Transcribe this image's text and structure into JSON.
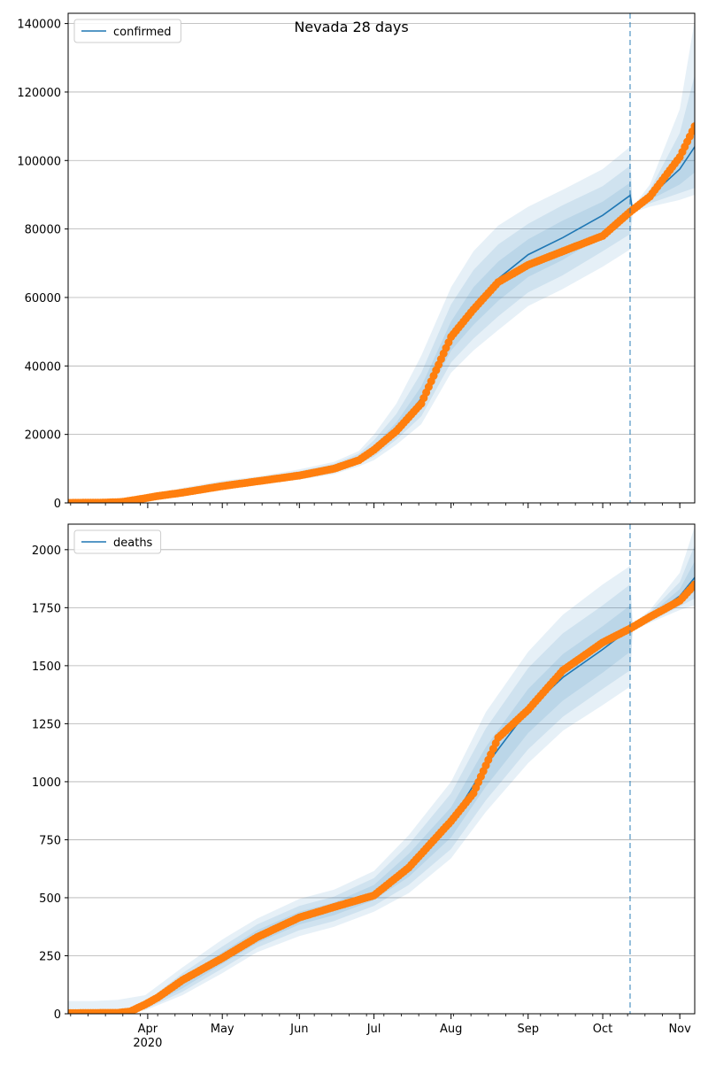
{
  "suptitle": "Nevada 28 days",
  "chart_data": [
    {
      "type": "line",
      "ylim": [
        0,
        143000
      ],
      "yticks": [
        0,
        20000,
        40000,
        60000,
        80000,
        100000,
        120000,
        140000
      ],
      "ytick_labels": [
        "0",
        "20000",
        "40000",
        "60000",
        "80000",
        "100000",
        "120000",
        "140000"
      ],
      "grid": "y",
      "legend": {
        "position": "top-left",
        "label": "confirmed"
      },
      "vline": {
        "date": "2020-10-12",
        "style": "dashed"
      },
      "model": {
        "name": "confirmed",
        "color": "#1f77b4",
        "dates": [
          "2020-02-29",
          "2020-03-10",
          "2020-03-20",
          "2020-03-31",
          "2020-04-15",
          "2020-05-01",
          "2020-05-15",
          "2020-06-01",
          "2020-06-15",
          "2020-06-25",
          "2020-07-01",
          "2020-07-10",
          "2020-07-20",
          "2020-08-01",
          "2020-08-10",
          "2020-08-20",
          "2020-09-01",
          "2020-09-15",
          "2020-10-01",
          "2020-10-12",
          "2020-10-13",
          "2020-10-20",
          "2020-11-01",
          "2020-11-07"
        ],
        "median": [
          0,
          0,
          0,
          1200,
          3200,
          5300,
          6500,
          8300,
          10200,
          12800,
          15500,
          21500,
          30500,
          48500,
          57500,
          65500,
          72500,
          77500,
          84000,
          89800,
          85500,
          89500,
          97500,
          104000
        ],
        "band_50_lo": [
          0,
          0,
          0,
          1000,
          2800,
          4900,
          6100,
          7800,
          9600,
          12100,
          14500,
          20000,
          27800,
          44500,
          52000,
          59000,
          66000,
          71000,
          78000,
          83500,
          85300,
          88500,
          93000,
          96500
        ],
        "band_50_hi": [
          0,
          0,
          0,
          1400,
          3600,
          5700,
          6900,
          8800,
          10800,
          13600,
          16800,
          23500,
          34000,
          53000,
          63000,
          70500,
          77000,
          82500,
          88000,
          93500,
          85800,
          90500,
          102000,
          112000
        ],
        "band_80_lo": [
          0,
          0,
          0,
          800,
          2400,
          4500,
          5700,
          7300,
          9000,
          11400,
          13500,
          18500,
          25300,
          41000,
          48000,
          54500,
          61500,
          66500,
          73500,
          78500,
          85100,
          87500,
          90500,
          92000
        ],
        "band_80_hi": [
          0,
          0,
          0,
          1600,
          4000,
          6100,
          7300,
          9300,
          11400,
          14400,
          18300,
          26000,
          38000,
          58000,
          68000,
          75500,
          81500,
          87000,
          92500,
          98500,
          86000,
          91500,
          108000,
          125000
        ],
        "band_95_lo": [
          0,
          0,
          0,
          600,
          2000,
          4100,
          5300,
          6800,
          8400,
          10700,
          12500,
          17000,
          23000,
          38000,
          44500,
          50500,
          57500,
          62500,
          69000,
          74000,
          84800,
          86500,
          88500,
          90000
        ],
        "band_95_hi": [
          0,
          0,
          0,
          1800,
          4400,
          6500,
          7700,
          9800,
          12000,
          15200,
          20000,
          29000,
          43000,
          63000,
          73500,
          81000,
          86500,
          91500,
          97500,
          104000,
          86300,
          93000,
          115000,
          141000
        ]
      },
      "observed": {
        "name": "observed",
        "color": "#ff7f0e",
        "dates": [
          "2020-02-29",
          "2020-03-15",
          "2020-03-22",
          "2020-03-28",
          "2020-04-05",
          "2020-04-15",
          "2020-05-01",
          "2020-05-15",
          "2020-06-01",
          "2020-06-15",
          "2020-06-25",
          "2020-07-01",
          "2020-07-10",
          "2020-07-20",
          "2020-08-01",
          "2020-08-10",
          "2020-08-20",
          "2020-09-01",
          "2020-09-15",
          "2020-10-01",
          "2020-10-12",
          "2020-10-20",
          "2020-11-01",
          "2020-11-07"
        ],
        "values": [
          0,
          100,
          300,
          1000,
          2000,
          3000,
          4900,
          6300,
          8000,
          10000,
          12500,
          15500,
          21000,
          29000,
          48500,
          56500,
          64500,
          69500,
          73500,
          78000,
          85000,
          89500,
          101000,
          110000
        ]
      }
    },
    {
      "type": "line",
      "ylim": [
        0,
        2110
      ],
      "yticks": [
        0,
        250,
        500,
        750,
        1000,
        1250,
        1500,
        1750,
        2000
      ],
      "ytick_labels": [
        "0",
        "250",
        "500",
        "750",
        "1000",
        "1250",
        "1500",
        "1750",
        "2000"
      ],
      "grid": "y",
      "legend": {
        "position": "top-left",
        "label": "deaths"
      },
      "vline": {
        "date": "2020-10-12",
        "style": "dashed"
      },
      "xticks": [
        {
          "date": "2020-04-01",
          "label": "Apr"
        },
        {
          "date": "2020-05-01",
          "label": "May"
        },
        {
          "date": "2020-06-01",
          "label": "Jun"
        },
        {
          "date": "2020-07-01",
          "label": "Jul"
        },
        {
          "date": "2020-08-01",
          "label": "Aug"
        },
        {
          "date": "2020-09-01",
          "label": "Sep"
        },
        {
          "date": "2020-10-01",
          "label": "Oct"
        },
        {
          "date": "2020-11-01",
          "label": "Nov"
        }
      ],
      "xtick_year": "2020",
      "model": {
        "name": "deaths",
        "color": "#1f77b4",
        "dates": [
          "2020-02-29",
          "2020-03-10",
          "2020-03-20",
          "2020-03-31",
          "2020-04-15",
          "2020-05-01",
          "2020-05-15",
          "2020-06-01",
          "2020-06-15",
          "2020-07-01",
          "2020-07-15",
          "2020-08-01",
          "2020-08-15",
          "2020-09-01",
          "2020-09-15",
          "2020-10-01",
          "2020-10-12",
          "2020-10-13",
          "2020-10-20",
          "2020-11-01",
          "2020-11-07"
        ],
        "median": [
          0,
          0,
          5,
          30,
          130,
          240,
          330,
          410,
          450,
          520,
          640,
          830,
          1070,
          1310,
          1450,
          1570,
          1660,
          1665,
          1710,
          1800,
          1880
        ],
        "band_50_lo": [
          0,
          0,
          4,
          25,
          110,
          215,
          305,
          385,
          425,
          490,
          590,
          760,
          980,
          1210,
          1350,
          1470,
          1560,
          1660,
          1700,
          1770,
          1820
        ],
        "band_50_hi": [
          0,
          0,
          7,
          38,
          150,
          265,
          360,
          440,
          480,
          555,
          690,
          890,
          1150,
          1400,
          1550,
          1670,
          1760,
          1670,
          1720,
          1830,
          1950
        ],
        "band_80_lo": [
          0,
          0,
          3,
          20,
          95,
          195,
          285,
          360,
          400,
          465,
          555,
          710,
          920,
          1140,
          1280,
          1400,
          1480,
          1655,
          1690,
          1755,
          1790
        ],
        "band_80_hi": [
          0,
          0,
          10,
          48,
          175,
          290,
          385,
          465,
          505,
          585,
          730,
          950,
          1230,
          1490,
          1640,
          1760,
          1850,
          1675,
          1730,
          1860,
          2020
        ],
        "band_95_lo": [
          0,
          0,
          2,
          15,
          80,
          175,
          265,
          335,
          375,
          440,
          520,
          670,
          870,
          1080,
          1220,
          1330,
          1410,
          1650,
          1685,
          1740,
          1760
        ],
        "band_95_hi": [
          55,
          55,
          60,
          80,
          200,
          320,
          410,
          495,
          535,
          615,
          770,
          1000,
          1300,
          1560,
          1720,
          1850,
          1930,
          1680,
          1740,
          1900,
          2100
        ]
      },
      "observed": {
        "name": "observed",
        "color": "#ff7f0e",
        "dates": [
          "2020-02-29",
          "2020-03-20",
          "2020-03-25",
          "2020-03-31",
          "2020-04-05",
          "2020-04-15",
          "2020-05-01",
          "2020-05-15",
          "2020-06-01",
          "2020-06-15",
          "2020-07-01",
          "2020-07-15",
          "2020-08-01",
          "2020-08-10",
          "2020-08-20",
          "2020-09-01",
          "2020-09-15",
          "2020-10-01",
          "2020-10-12",
          "2020-10-20",
          "2020-11-01",
          "2020-11-07"
        ],
        "values": [
          3,
          4,
          10,
          40,
          70,
          145,
          240,
          330,
          415,
          460,
          510,
          630,
          830,
          950,
          1190,
          1310,
          1480,
          1600,
          1660,
          1710,
          1780,
          1850
        ]
      }
    }
  ]
}
